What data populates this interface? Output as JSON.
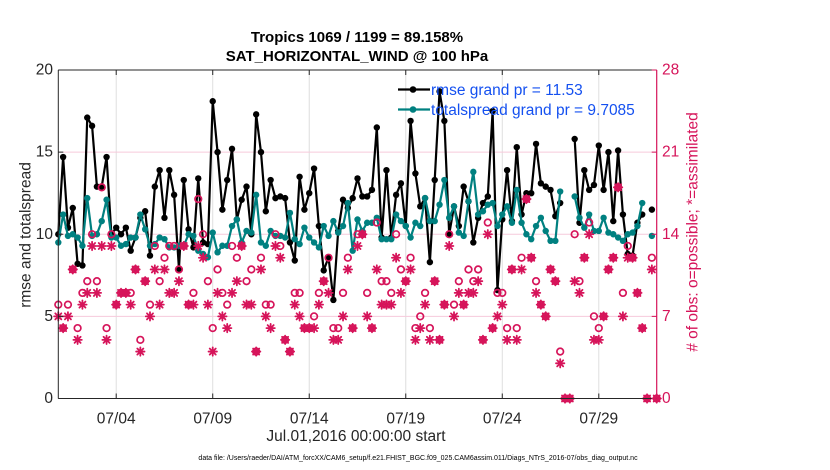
{
  "chart_data": {
    "type": "line",
    "title": [
      "Tropics 1069 / 1199 = 89.158%",
      "SAT_HORIZONTAL_WIND @ 100 hPa"
    ],
    "xlabel": "Jul.01,2016 00:00:00 start",
    "ylabel": "rmse and totalspread",
    "ylabel_right": "# of obs: o=possible; *=assimilated",
    "x_unit": "days since Jul.01,2016 00:00:00",
    "x_start": 0,
    "x_step": 0.25,
    "xlim": [
      0,
      31
    ],
    "ylim": [
      0,
      20
    ],
    "ylim_right": [
      0,
      28
    ],
    "x_ticks": {
      "values": [
        3,
        8,
        13,
        18,
        23,
        28
      ],
      "labels": [
        "07/04",
        "07/09",
        "07/14",
        "07/19",
        "07/24",
        "07/29"
      ]
    },
    "y_ticks": [
      0,
      5,
      10,
      15,
      20
    ],
    "y_ticks_right": [
      0,
      7,
      14,
      21,
      28
    ],
    "grid": true,
    "left_axis_color": "#262626",
    "right_axis_color": "#d6145a",
    "legend": {
      "position": "top-right",
      "text_color": "#1450f0",
      "entries": [
        {
          "label": "rmse grand pr = 11.53",
          "color": "#000000"
        },
        {
          "label": "totalspread grand pr = 9.7085",
          "color": "#008080"
        }
      ]
    },
    "series": [
      {
        "name": "rmse",
        "axis": "left",
        "style": "line-dot",
        "color": "#000000",
        "values": [
          10.0,
          14.7,
          10.4,
          11.6,
          8.2,
          8.1,
          17.1,
          16.6,
          12.9,
          12.9,
          14.7,
          10.0,
          10.4,
          10.0,
          10.4,
          9.0,
          9.8,
          11.0,
          11.4,
          8.7,
          12.9,
          13.9,
          11.0,
          13.9,
          12.4,
          7.9,
          13.3,
          10.3,
          9.2,
          13.4,
          9.5,
          9.4,
          18.1,
          15.0,
          11.5,
          13.3,
          15.2,
          10.9,
          12.1,
          12.9,
          10.0,
          17.3,
          15.0,
          11.4,
          13.3,
          12.2,
          12.3,
          12.2,
          9.5,
          8.4,
          13.5,
          11.5,
          12.5,
          14.0,
          10.5,
          7.8,
          8.6,
          6.0,
          10.2,
          12.1,
          11.6,
          12.2,
          13.4,
          12.3,
          12.3,
          12.7,
          16.5,
          9.8,
          13.9,
          9.8,
          12.4,
          13.1,
          10.5,
          16.9,
          13.7,
          11.7,
          12.2,
          8.3,
          13.3,
          18.7,
          16.9,
          10.0,
          11.7,
          10.5,
          12.9,
          12.0,
          9.5,
          11.0,
          11.9,
          12.3,
          17.5,
          6.6,
          10.9,
          13.9,
          10.8,
          15.3,
          11.2,
          12.5,
          12.5,
          15.5,
          13.1,
          12.9,
          12.7,
          11.1,
          11.9,
          null,
          null,
          15.8,
          10.7,
          13.9,
          12.7,
          13.0,
          15.4,
          12.7,
          15.0,
          10.8,
          15.1,
          11.2,
          8.8,
          8.7,
          10.7,
          11.2,
          null,
          11.5,
          null
        ]
      },
      {
        "name": "totalspread",
        "axis": "left",
        "style": "line-dot",
        "color": "#008080",
        "values": [
          9.5,
          11.2,
          9.9,
          10.0,
          9.8,
          9.3,
          12.2,
          9.9,
          10.0,
          10.8,
          12.1,
          9.8,
          9.8,
          9.3,
          9.4,
          9.8,
          9.8,
          11.2,
          10.3,
          9.3,
          9.4,
          9.8,
          9.7,
          9.2,
          9.2,
          9.3,
          9.3,
          10.0,
          9.9,
          9.0,
          8.8,
          8.6,
          10.1,
          8.9,
          9.3,
          9.3,
          10.5,
          10.9,
          9.5,
          10.2,
          10.1,
          12.4,
          9.5,
          9.3,
          10.2,
          9.9,
          9.9,
          9.8,
          11.3,
          9.7,
          9.4,
          10.4,
          9.8,
          9.5,
          9.2,
          10.5,
          9.9,
          10.8,
          10.1,
          10.5,
          11.9,
          9.0,
          10.9,
          10.2,
          10.7,
          10.7,
          11.0,
          9.7,
          9.7,
          9.7,
          11.2,
          10.8,
          10.5,
          9.8,
          10.7,
          10.5,
          12.2,
          10.8,
          10.8,
          11.8,
          13.3,
          11.0,
          11.7,
          10.1,
          9.9,
          12.0,
          13.8,
          11.2,
          11.4,
          11.8,
          11.9,
          10.5,
          11.2,
          11.7,
          10.7,
          12.7,
          10.7,
          10.0,
          9.7,
          10.5,
          11.0,
          10.2,
          9.6,
          9.6,
          12.6,
          null,
          null,
          12.3,
          11.0,
          10.4,
          11.2,
          10.2,
          10.2,
          11.0,
          10.1,
          10.0,
          9.8,
          9.6,
          10.0,
          10.1,
          10.5,
          11.9,
          null,
          9.9,
          null
        ]
      },
      {
        "name": "possible",
        "axis": "right",
        "style": "marker-o",
        "color": "#d6145a",
        "values": [
          8,
          6,
          8,
          11,
          6,
          9,
          10,
          14,
          10,
          18,
          6,
          14,
          8,
          9,
          9,
          9,
          11,
          5,
          10,
          8,
          13,
          10,
          12,
          13,
          13,
          11,
          13,
          8,
          9,
          17,
          14,
          10,
          6,
          11,
          9,
          8,
          13,
          12,
          13,
          10,
          11,
          4,
          12,
          8,
          8,
          14,
          13,
          5,
          4,
          9,
          9,
          6,
          6,
          7,
          9,
          10,
          12,
          6,
          6,
          9,
          12,
          6,
          14,
          14,
          9,
          6,
          15,
          10,
          10,
          9,
          14,
          11,
          10,
          12,
          6,
          7,
          9,
          6,
          10,
          5,
          8,
          14,
          8,
          10,
          8,
          11,
          10,
          11,
          5,
          15,
          6,
          9,
          9,
          6,
          11,
          6,
          12,
          17,
          12,
          10,
          8,
          7,
          11,
          10,
          4,
          0,
          0,
          14,
          10,
          12,
          15,
          7,
          6,
          7,
          11,
          12,
          18,
          9,
          13,
          12,
          9,
          6,
          0,
          12,
          0
        ]
      },
      {
        "name": "assimilated",
        "axis": "right",
        "style": "marker-asterisk",
        "color": "#d6145a",
        "values": [
          7,
          6,
          7,
          11,
          5,
          8,
          9,
          13,
          9,
          13,
          5,
          13,
          8,
          9,
          9,
          8,
          11,
          4,
          10,
          7,
          11,
          8,
          11,
          9,
          9,
          10,
          13,
          8,
          8,
          13,
          12,
          8,
          4,
          9,
          7,
          6,
          9,
          10,
          13,
          8,
          8,
          4,
          11,
          7,
          6,
          13,
          12,
          5,
          4,
          8,
          7,
          6,
          6,
          6,
          8,
          10,
          9,
          5,
          5,
          7,
          11,
          6,
          13,
          14,
          7,
          6,
          11,
          8,
          8,
          8,
          12,
          9,
          10,
          11,
          5,
          6,
          8,
          5,
          10,
          5,
          8,
          13,
          7,
          9,
          8,
          9,
          9,
          10,
          5,
          14,
          6,
          7,
          8,
          5,
          11,
          5,
          11,
          17,
          12,
          9,
          8,
          7,
          11,
          10,
          3,
          0,
          0,
          10,
          9,
          12,
          14,
          5,
          5,
          7,
          11,
          12,
          18,
          7,
          12,
          12,
          9,
          6,
          0,
          11,
          0
        ]
      }
    ]
  },
  "footer": {
    "data_file": "data file: /Users/raeder/DAI/ATM_forcXX/CAM6_setup/f.e21.FHIST_BGC.f09_025.CAM6assim.011/Diags_NTrS_2016-07/obs_diag_output.nc"
  }
}
